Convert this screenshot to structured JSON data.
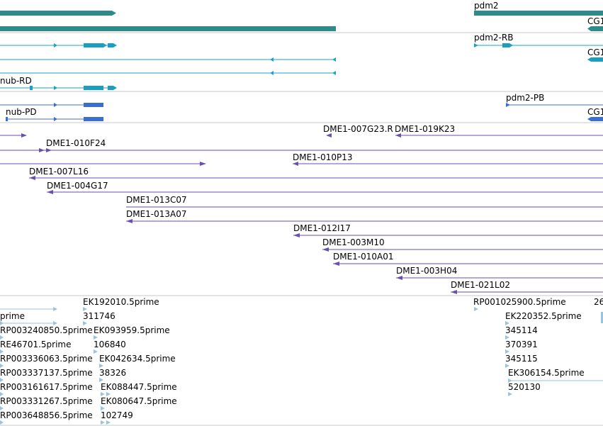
{
  "colors": {
    "gene": "#2e8b8b",
    "transcript": "#1aa3c4",
    "cds": "#1a9fc2",
    "pd_transcript": "#3a6fd0",
    "clone": "#6a4fb0",
    "est": "#9ac3e0",
    "separator": "#c8c8c8",
    "background": "#ffffff"
  },
  "tracks": {
    "genes": [
      {
        "label": ""
      },
      {
        "label": ""
      },
      {
        "label": "pdm2"
      }
    ],
    "transcripts": [
      {
        "label": ""
      },
      {
        "label": ""
      },
      {
        "label": ""
      },
      {
        "label": "nub-RD"
      },
      {
        "label": "pdm2-RB"
      },
      {
        "label": "CG1"
      },
      {
        "label": "CG1"
      }
    ],
    "pd_transcripts": [
      {
        "label": ""
      },
      {
        "label": "nub-PD"
      },
      {
        "label": "pdm2-PB"
      },
      {
        "label": "CG1"
      }
    ],
    "clones": [
      {
        "label": ""
      },
      {
        "label": "DME1-007G23.R"
      },
      {
        "label": "DME1-019K23"
      },
      {
        "label": "DME1-010F24"
      },
      {
        "label": ""
      },
      {
        "label": "DME1-010P13"
      },
      {
        "label": "DME1-007L16"
      },
      {
        "label": "DME1-004G17"
      },
      {
        "label": "DME1-013C07"
      },
      {
        "label": "DME1-013A07"
      },
      {
        "label": "DME1-012I17"
      },
      {
        "label": "DME1-003M10"
      },
      {
        "label": "DME1-010A01"
      },
      {
        "label": "DME1-003H04"
      },
      {
        "label": "DME1-021L02"
      }
    ],
    "ests": [
      {
        "label": "prime"
      },
      {
        "label": "RP003240850.5prime"
      },
      {
        "label": "RE46701.5prime"
      },
      {
        "label": "RP003336063.5prime"
      },
      {
        "label": "RP003337137.5prime"
      },
      {
        "label": "RP003161617.5prime"
      },
      {
        "label": "RP003331267.5prime"
      },
      {
        "label": "RP003648856.5prime"
      },
      {
        "label": "EK192010.5prime"
      },
      {
        "label": "311746"
      },
      {
        "label": "EK093959.5prime"
      },
      {
        "label": "106840"
      },
      {
        "label": "EK042634.5prime"
      },
      {
        "label": "38326"
      },
      {
        "label": "EK088447.5prime"
      },
      {
        "label": "EK080647.5prime"
      },
      {
        "label": "102749"
      },
      {
        "label": "RP001025900.5prime"
      },
      {
        "label": "26"
      },
      {
        "label": "EK220352.5prime"
      },
      {
        "label": "345114"
      },
      {
        "label": "370391"
      },
      {
        "label": "345115"
      },
      {
        "label": "EK306154.5prime"
      },
      {
        "label": "520130"
      }
    ]
  }
}
